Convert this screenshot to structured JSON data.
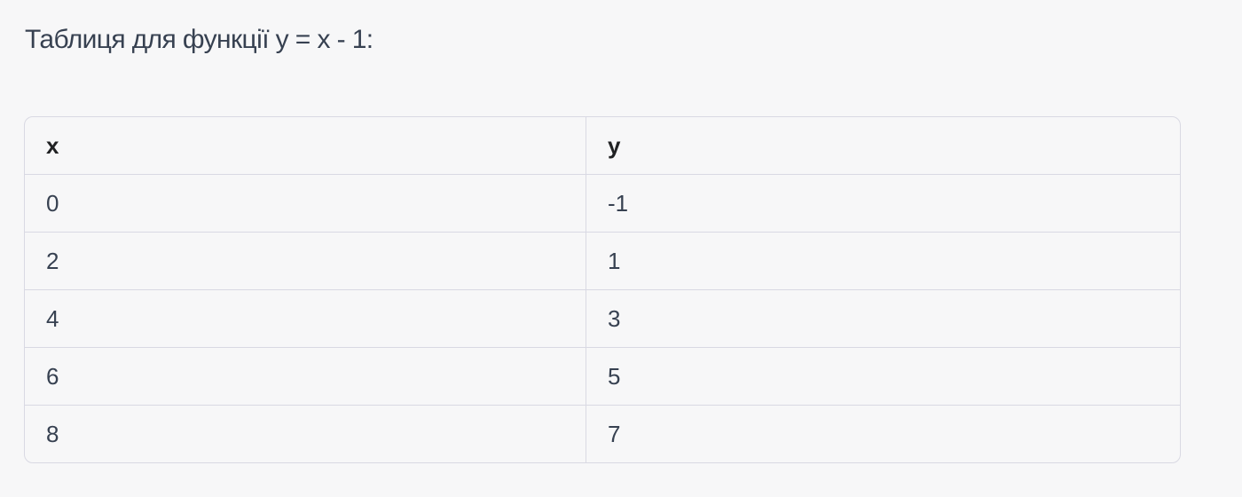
{
  "title": "Таблиця для функції y = x - 1:",
  "table": {
    "headers": [
      "x",
      "y"
    ],
    "rows": [
      [
        "0",
        "-1"
      ],
      [
        "2",
        "1"
      ],
      [
        "4",
        "3"
      ],
      [
        "6",
        "5"
      ],
      [
        "8",
        "7"
      ]
    ]
  }
}
